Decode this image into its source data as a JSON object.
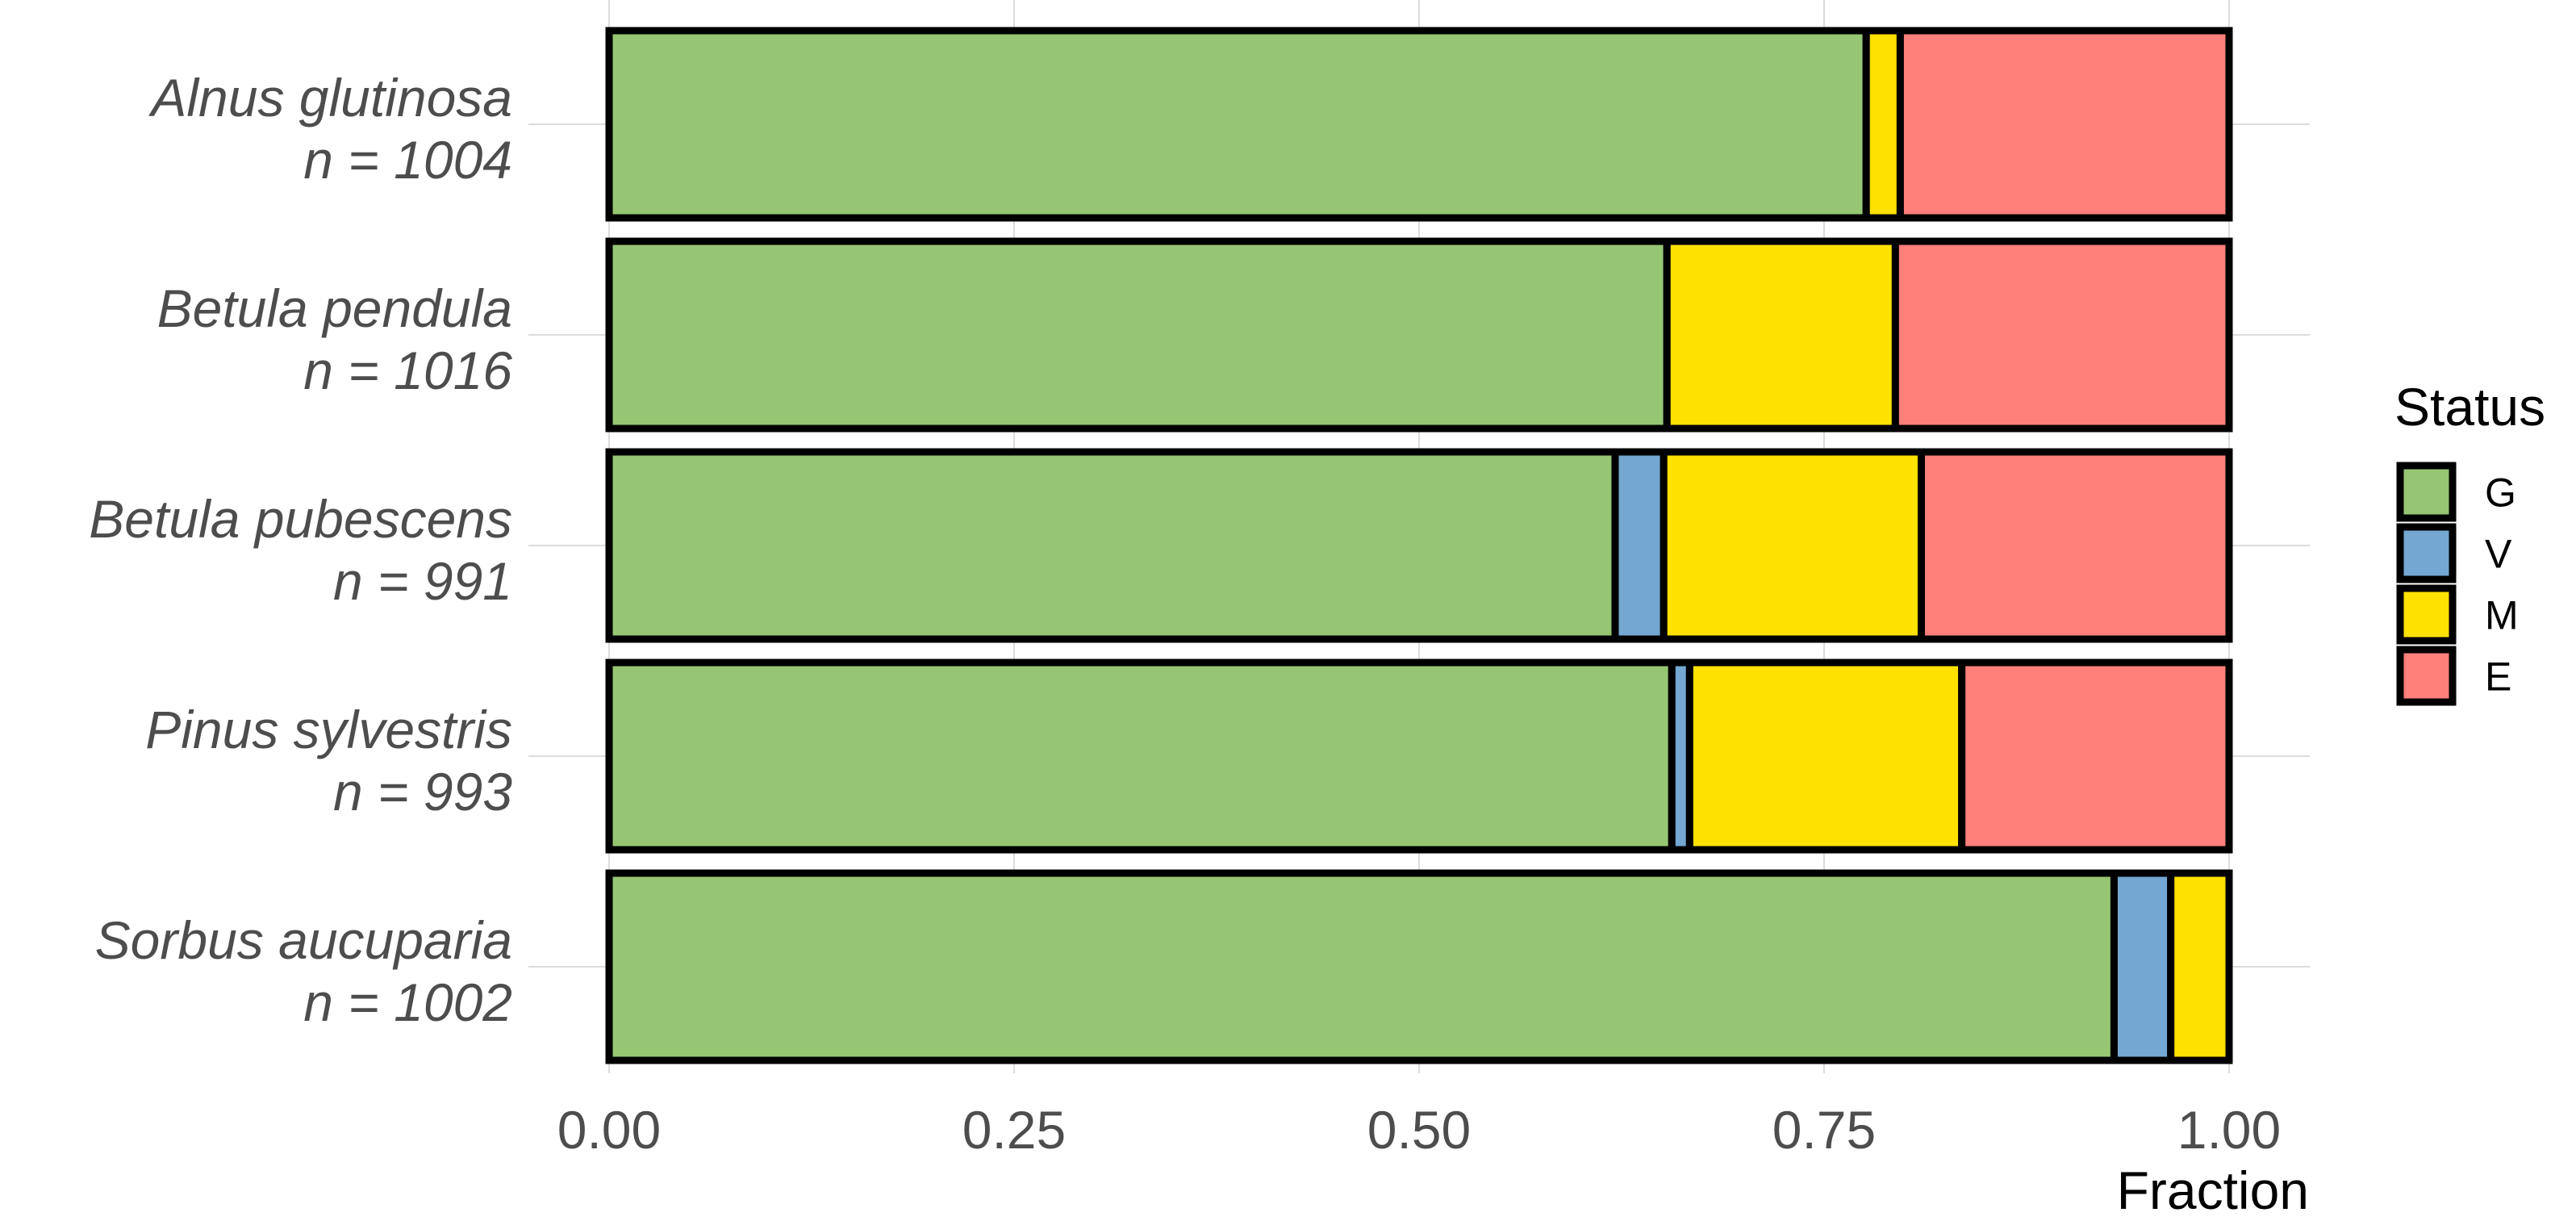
{
  "chart_data": {
    "type": "bar",
    "orientation": "horizontal",
    "stacked": true,
    "categories": [
      {
        "species": "Alnus glutinosa",
        "n_label": "n = 1004"
      },
      {
        "species": "Betula pendula",
        "n_label": "n = 1016"
      },
      {
        "species": "Betula pubescens",
        "n_label": "n = 991"
      },
      {
        "species": "Pinus sylvestris",
        "n_label": "n = 993"
      },
      {
        "species": "Sorbus aucuparia",
        "n_label": "n = 1002"
      }
    ],
    "series": [
      {
        "name": "G",
        "color": "#96c673",
        "values": [
          0.776,
          0.653,
          0.621,
          0.656,
          0.929
        ]
      },
      {
        "name": "V",
        "color": "#74a7d1",
        "values": [
          0.0,
          0.0,
          0.03,
          0.011,
          0.035
        ]
      },
      {
        "name": "M",
        "color": "#ffe100",
        "values": [
          0.021,
          0.141,
          0.159,
          0.168,
          0.036
        ]
      },
      {
        "name": "E",
        "color": "#ff7f7b",
        "values": [
          0.203,
          0.206,
          0.19,
          0.165,
          0.0
        ]
      }
    ],
    "xlabel": "Fraction",
    "ylabel": "",
    "xlim": [
      0,
      1
    ],
    "xticks": [
      0,
      0.25,
      0.5,
      0.75,
      1.0
    ],
    "xtick_labels": [
      "0.00",
      "0.25",
      "0.50",
      "0.75",
      "1.00"
    ],
    "legend": {
      "title": "Status",
      "placement": "right",
      "entries": [
        "G",
        "V",
        "M",
        "E"
      ]
    },
    "grid": true
  }
}
